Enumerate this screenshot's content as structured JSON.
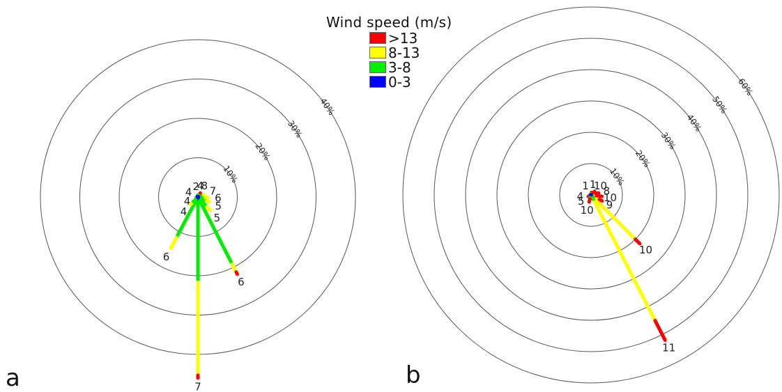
{
  "legend": {
    "title": "Wind speed (m/s)",
    "bins": [
      {
        "label": ">13",
        "color": "#ff0000"
      },
      {
        "label": "8-13",
        "color": "#ffff00"
      },
      {
        "label": "3-8",
        "color": "#00ee00"
      },
      {
        "label": "0-3",
        "color": "#0000ff"
      }
    ]
  },
  "chart_data": [
    {
      "type": "windrose",
      "panel_label": "a",
      "ring_values_pct": [
        10,
        20,
        30,
        40
      ],
      "ring_labels": [
        "10%",
        "20%",
        "30%",
        "40%"
      ],
      "petals": [
        {
          "label": "7",
          "direction_deg": 180,
          "total_pct": 46,
          "segments": {
            "0-3": 0.8,
            "3-8": 20.5,
            "8-13": 24,
            ">13": 0.7
          }
        },
        {
          "label": "6",
          "direction_deg": 153,
          "total_pct": 22,
          "segments": {
            "0-3": 0.8,
            "3-8": 18,
            "8-13": 2.6,
            ">13": 0.6
          }
        },
        {
          "label": "6",
          "direction_deg": 208,
          "total_pct": 15,
          "segments": {
            "0-3": 0.8,
            "3-8": 10.5,
            "8-13": 3.7,
            ">13": 0
          }
        },
        {
          "label": "5",
          "direction_deg": 137,
          "total_pct": 5,
          "segments": {
            "0-3": 0.5,
            "3-8": 2.5,
            "8-13": 2,
            ">13": 0
          }
        },
        {
          "label": "5",
          "direction_deg": 113,
          "total_pct": 3.5,
          "segments": {
            "0-3": 0.5,
            "3-8": 1.5,
            "8-13": 1.5,
            ">13": 0
          }
        },
        {
          "label": "6",
          "direction_deg": 92,
          "total_pct": 3,
          "segments": {
            "0-3": 0.5,
            "3-8": 1,
            "8-13": 1.5,
            ">13": 0
          }
        },
        {
          "label": "7",
          "direction_deg": 67,
          "total_pct": 2,
          "segments": {
            "0-3": 0.5,
            "3-8": 0.7,
            "8-13": 0.8,
            ">13": 0
          }
        },
        {
          "label": "8",
          "direction_deg": 30,
          "total_pct": 1.2,
          "segments": {
            "0-3": 0.4,
            "3-8": 0.4,
            "8-13": 0.2,
            ">13": 0.2
          }
        },
        {
          "label": "4",
          "direction_deg": 12,
          "total_pct": 0.9,
          "segments": {
            "0-3": 0.5,
            "3-8": 0.4,
            "8-13": 0,
            ">13": 0
          }
        },
        {
          "label": "2",
          "direction_deg": 350,
          "total_pct": 0.7,
          "segments": {
            "0-3": 0.5,
            "3-8": 0.2,
            "8-13": 0,
            ">13": 0
          }
        },
        {
          "label": "4",
          "direction_deg": 300,
          "total_pct": 0.6,
          "segments": {
            "0-3": 0.6,
            "3-8": 0,
            "8-13": 0,
            ">13": 0
          }
        },
        {
          "label": "4",
          "direction_deg": 250,
          "total_pct": 0.8,
          "segments": {
            "0-3": 0.5,
            "3-8": 0.3,
            "8-13": 0,
            ">13": 0
          }
        },
        {
          "label": "4",
          "direction_deg": 225,
          "total_pct": 3,
          "segments": {
            "0-3": 0.5,
            "3-8": 1.5,
            "8-13": 1,
            ">13": 0
          }
        }
      ]
    },
    {
      "type": "windrose",
      "panel_label": "b",
      "ring_values_pct": [
        10,
        20,
        30,
        40,
        50,
        60
      ],
      "ring_labels": [
        "10%",
        "20%",
        "30%",
        "40%",
        "50%",
        "60%"
      ],
      "petals": [
        {
          "label": "11",
          "direction_deg": 153,
          "total_pct": 52,
          "segments": {
            "0-3": 0.5,
            "3-8": 1.5,
            "8-13": 43,
            ">13": 7
          }
        },
        {
          "label": "10",
          "direction_deg": 135,
          "total_pct": 22,
          "segments": {
            "0-3": 0.5,
            "3-8": 1.5,
            "8-13": 18,
            ">13": 2
          }
        },
        {
          "label": "9",
          "direction_deg": 118,
          "total_pct": 4,
          "segments": {
            "0-3": 0.5,
            "3-8": 1,
            "8-13": 1.5,
            ">13": 1
          }
        },
        {
          "label": "10",
          "direction_deg": 97,
          "total_pct": 3.5,
          "segments": {
            "0-3": 0.5,
            "3-8": 0.5,
            "8-13": 0.5,
            ">13": 2
          }
        },
        {
          "label": "8",
          "direction_deg": 75,
          "total_pct": 2.5,
          "segments": {
            "0-3": 0.4,
            "3-8": 0.4,
            "8-13": 0.7,
            ">13": 1
          }
        },
        {
          "label": "10",
          "direction_deg": 45,
          "total_pct": 1.6,
          "segments": {
            "0-3": 0.4,
            "3-8": 0.4,
            "8-13": 0.3,
            ">13": 0.5
          }
        },
        {
          "label": "1",
          "direction_deg": 10,
          "total_pct": 0.8,
          "segments": {
            "0-3": 0.4,
            "3-8": 0.2,
            "8-13": 0,
            ">13": 0.2
          }
        },
        {
          "label": "1",
          "direction_deg": 330,
          "total_pct": 0.8,
          "segments": {
            "0-3": 0.5,
            "3-8": 0.3,
            "8-13": 0,
            ">13": 0
          }
        },
        {
          "label": "4",
          "direction_deg": 265,
          "total_pct": 0.8,
          "segments": {
            "0-3": 0.5,
            "3-8": 0.3,
            "8-13": 0,
            ">13": 0
          }
        },
        {
          "label": "5",
          "direction_deg": 240,
          "total_pct": 1,
          "segments": {
            "0-3": 0.5,
            "3-8": 0.3,
            "8-13": 0,
            ">13": 0.2
          }
        },
        {
          "label": "10",
          "direction_deg": 195,
          "total_pct": 2.3,
          "segments": {
            "0-3": 0.4,
            "3-8": 0.4,
            "8-13": 0.5,
            ">13": 1
          }
        }
      ]
    }
  ]
}
